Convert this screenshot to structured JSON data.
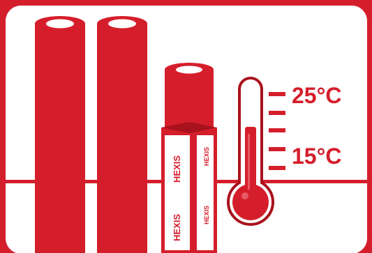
{
  "colors": {
    "brand_red": "#d51e2b",
    "dark_red": "#a8121d",
    "white": "#ffffff"
  },
  "thermometer": {
    "high_label": "25°C",
    "low_label": "15°C"
  },
  "box": {
    "brand_text": "HEXIS"
  },
  "icons": [
    "roll-icon",
    "roll-icon",
    "boxed-roll-icon",
    "thermometer-icon"
  ]
}
